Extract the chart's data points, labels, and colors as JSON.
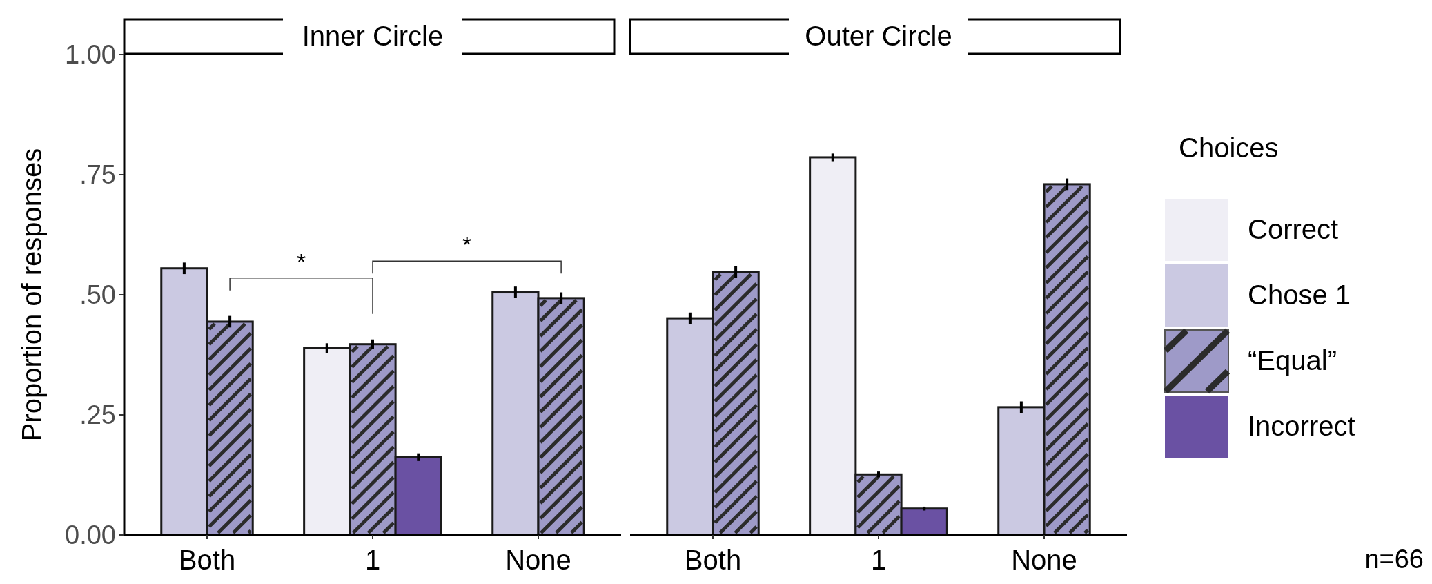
{
  "chart_data": [
    {
      "type": "bar",
      "title": "Inner Circle",
      "ylabel": "Proportion of responses",
      "categories": [
        "Both",
        "1",
        "None"
      ],
      "ylim": [
        0,
        1
      ],
      "yticks": [
        {
          "value": 0,
          "label": "0.00"
        },
        {
          "value": 0.25,
          "label": ".25"
        },
        {
          "value": 0.5,
          "label": ".50"
        },
        {
          "value": 0.75,
          "label": ".75"
        },
        {
          "value": 1,
          "label": "1.00"
        }
      ],
      "legend": false,
      "annotations": [
        "*",
        "*"
      ],
      "series": [
        {
          "color": "#efeef5",
          "values": [
            null,
            0.389,
            null
          ],
          "errors": [
            null,
            0.01,
            null
          ]
        },
        {
          "color": "#cbc9e2",
          "values": [
            0.555,
            null,
            0.505
          ],
          "errors": [
            0.012,
            null,
            0.012
          ]
        },
        {
          "color": "#9e9ac8",
          "values": [
            0.444,
            0.397,
            0.493
          ],
          "errors": [
            0.012,
            0.01,
            0.012
          ]
        },
        {
          "color": "#6a51a3",
          "values": [
            null,
            0.162,
            null
          ],
          "errors": [
            null,
            0.008,
            null
          ]
        }
      ]
    },
    {
      "type": "bar",
      "title": "Outer Circle",
      "categories": [
        "Both",
        "1",
        "None"
      ],
      "ylim": [
        0,
        1
      ],
      "tick_labels": "x",
      "legend": "right",
      "legend_title": "Choices",
      "annotations": [
        "n=66"
      ],
      "series": [
        {
          "name": "Correct",
          "color": "#efeef5",
          "values": [
            null,
            0.786,
            null
          ],
          "errors": [
            null,
            0.008,
            null
          ]
        },
        {
          "name": "Chose 1",
          "color": "#cbc9e2",
          "values": [
            0.451,
            null,
            0.266
          ],
          "errors": [
            0.012,
            null,
            0.012
          ]
        },
        {
          "name": "“Equal”",
          "color": "#9e9ac8",
          "values": [
            0.547,
            0.126,
            0.73
          ],
          "errors": [
            0.012,
            0.006,
            0.012
          ]
        },
        {
          "name": "Incorrect",
          "color": "#6a51a3",
          "values": [
            null,
            0.055,
            null
          ],
          "errors": [
            null,
            0.004,
            null
          ]
        }
      ]
    }
  ]
}
